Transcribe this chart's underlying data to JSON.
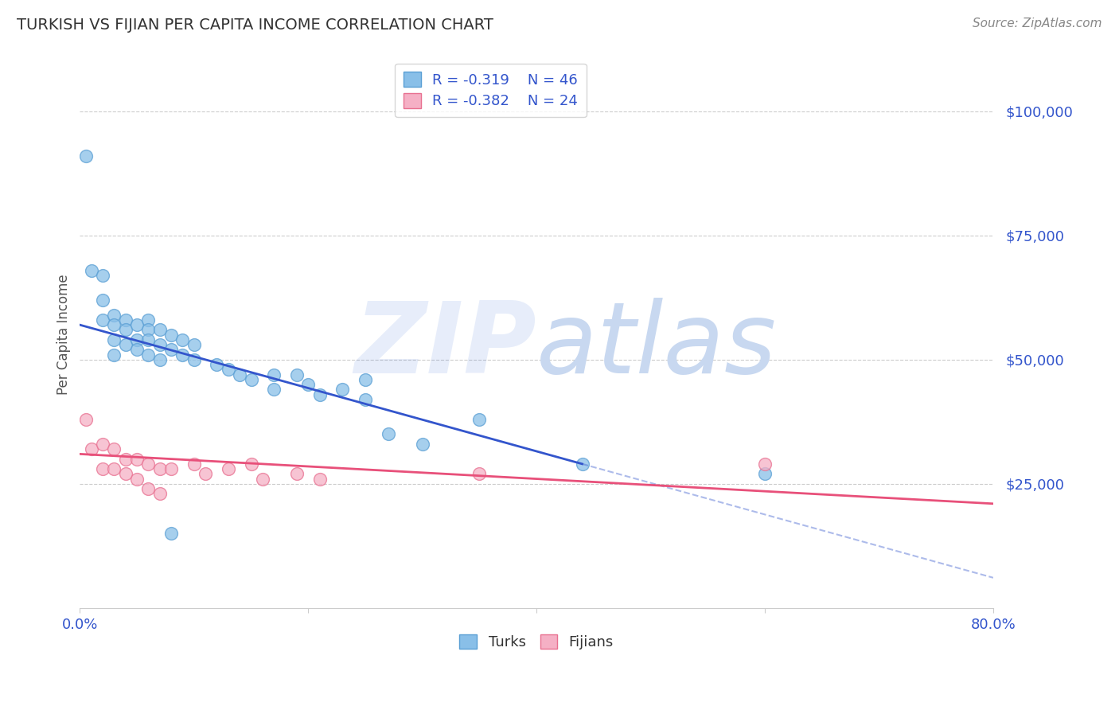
{
  "title": "TURKISH VS FIJIAN PER CAPITA INCOME CORRELATION CHART",
  "source": "Source: ZipAtlas.com",
  "ylabel": "Per Capita Income",
  "xlim": [
    0.0,
    0.8
  ],
  "ylim": [
    0,
    110000
  ],
  "yticks": [
    25000,
    50000,
    75000,
    100000
  ],
  "ytick_labels": [
    "$25,000",
    "$50,000",
    "$75,000",
    "$100,000"
  ],
  "xticks": [
    0.0,
    0.2,
    0.4,
    0.6,
    0.8
  ],
  "xtick_labels": [
    "0.0%",
    "",
    "",
    "",
    "80.0%"
  ],
  "turks_R": -0.319,
  "turks_N": 46,
  "fijians_R": -0.382,
  "fijians_N": 24,
  "turk_color": "#89bfe8",
  "turk_edge_color": "#5a9fd4",
  "fijian_color": "#f5b0c5",
  "fijian_edge_color": "#e87090",
  "turk_line_color": "#3355cc",
  "fijian_line_color": "#e8507a",
  "background_color": "#ffffff",
  "grid_color": "#cccccc",
  "turks_scatter_x": [
    0.005,
    0.01,
    0.02,
    0.02,
    0.02,
    0.03,
    0.03,
    0.03,
    0.03,
    0.04,
    0.04,
    0.04,
    0.05,
    0.05,
    0.05,
    0.06,
    0.06,
    0.06,
    0.06,
    0.07,
    0.07,
    0.07,
    0.08,
    0.08,
    0.09,
    0.09,
    0.1,
    0.1,
    0.12,
    0.13,
    0.14,
    0.15,
    0.17,
    0.17,
    0.19,
    0.2,
    0.21,
    0.23,
    0.25,
    0.25,
    0.27,
    0.3,
    0.35,
    0.44,
    0.6,
    0.08
  ],
  "turks_scatter_y": [
    91000,
    68000,
    67000,
    62000,
    58000,
    59000,
    57000,
    54000,
    51000,
    58000,
    56000,
    53000,
    57000,
    54000,
    52000,
    58000,
    56000,
    54000,
    51000,
    56000,
    53000,
    50000,
    55000,
    52000,
    54000,
    51000,
    53000,
    50000,
    49000,
    48000,
    47000,
    46000,
    47000,
    44000,
    47000,
    45000,
    43000,
    44000,
    42000,
    46000,
    35000,
    33000,
    38000,
    29000,
    27000,
    15000
  ],
  "fijians_scatter_x": [
    0.005,
    0.01,
    0.02,
    0.02,
    0.03,
    0.03,
    0.04,
    0.04,
    0.05,
    0.05,
    0.06,
    0.06,
    0.07,
    0.07,
    0.08,
    0.1,
    0.11,
    0.13,
    0.15,
    0.16,
    0.19,
    0.21,
    0.35,
    0.6
  ],
  "fijians_scatter_y": [
    38000,
    32000,
    33000,
    28000,
    32000,
    28000,
    30000,
    27000,
    30000,
    26000,
    29000,
    24000,
    28000,
    23000,
    28000,
    29000,
    27000,
    28000,
    29000,
    26000,
    27000,
    26000,
    27000,
    29000
  ],
  "turk_line_x0": 0.0,
  "turk_line_x1": 0.44,
  "turk_line_y0": 57000,
  "turk_line_y1": 29000,
  "fij_line_x0": 0.0,
  "fij_line_x1": 0.8,
  "fij_line_y0": 31000,
  "fij_line_y1": 21000,
  "watermark_zip": "ZIP",
  "watermark_atlas": "atlas",
  "watermark_color": "#c8d8f0",
  "title_color": "#333333",
  "axis_label_color": "#555555",
  "tick_color": "#3355cc",
  "source_color": "#888888"
}
